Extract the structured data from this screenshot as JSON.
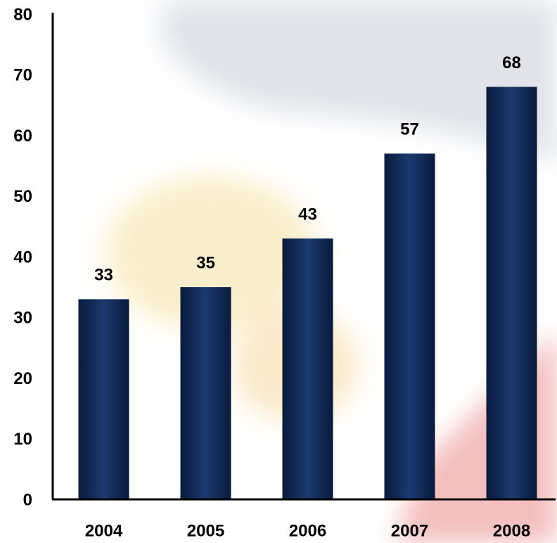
{
  "chart_data": {
    "type": "bar",
    "categories": [
      "2004",
      "2005",
      "2006",
      "2007",
      "2008"
    ],
    "values": [
      33,
      35,
      43,
      57,
      68
    ],
    "color": "#0d2350",
    "ylim": [
      0,
      80
    ],
    "yticks": [
      0,
      10,
      20,
      30,
      40,
      50,
      60,
      70,
      80
    ],
    "grid": false
  }
}
